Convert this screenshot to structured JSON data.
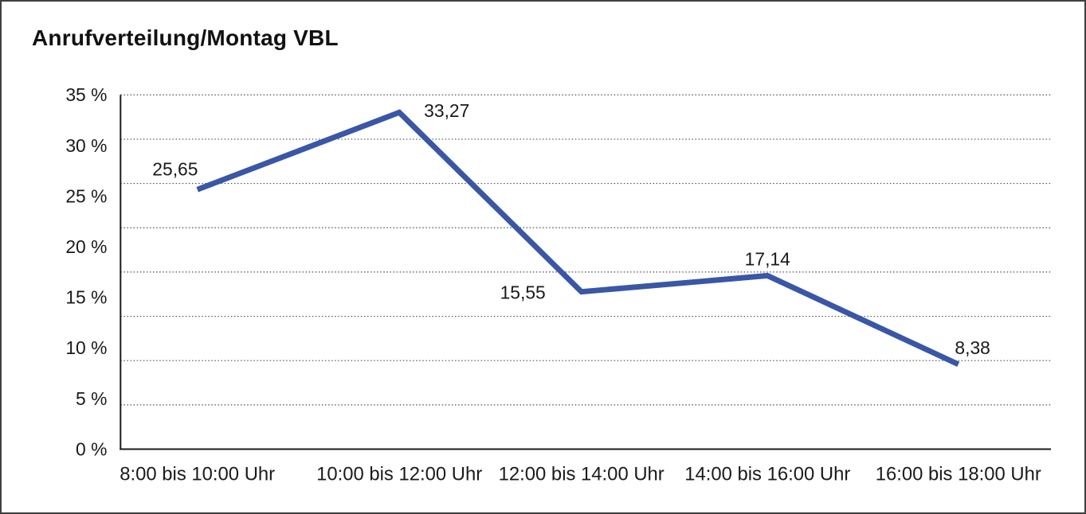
{
  "chart_data": {
    "type": "line",
    "title": "Anrufverteilung/Montag VBL",
    "categories": [
      "8:00 bis 10:00 Uhr",
      "10:00 bis 12:00 Uhr",
      "12:00 bis 14:00 Uhr",
      "14:00 bis 16:00 Uhr",
      "16:00 bis 18:00 Uhr"
    ],
    "values": [
      25.65,
      33.27,
      15.55,
      17.14,
      8.38
    ],
    "value_labels": [
      "25,65",
      "33,27",
      "15,55",
      "17,14",
      "8,38"
    ],
    "y_tick_labels": [
      "35 %",
      "30 %",
      "25 %",
      "20 %",
      "15 %",
      "10 %",
      "5 %",
      "0 %"
    ],
    "ylim": [
      0,
      35
    ],
    "y_unit": "%",
    "xlabel": "",
    "ylabel": "",
    "grid": "horizontal dotted",
    "legend": "none",
    "line_color": "#3A56A6",
    "text_color": "#1a1a1a",
    "axis_color": "#1a1a1a",
    "gridline_color": "#4d4d4d"
  }
}
